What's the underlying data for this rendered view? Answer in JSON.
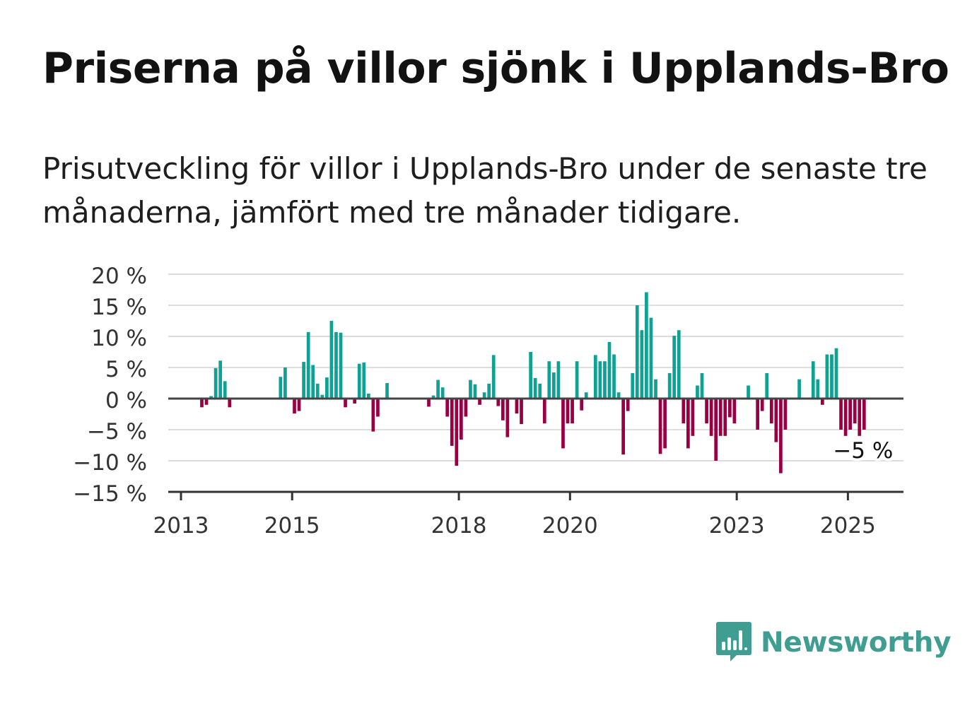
{
  "header": {
    "title": "Priserna på villor sjönk i Upplands-Bro",
    "subtitle": "Prisutveckling för villor i Upplands-Bro under de senaste tre månaderna, jämfört med tre månader tidigare."
  },
  "brand": {
    "name": "Newsworthy",
    "icon": "bar-chart-speech-bubble-icon",
    "color": "#3f9d92"
  },
  "colors": {
    "positive": "#0fa192",
    "negative": "#990044",
    "grid": "#dddddd",
    "zero_line": "#444444",
    "axis": "#333333"
  },
  "chart_data": {
    "type": "bar",
    "title": "Priserna på villor sjönk i Upplands-Bro",
    "subtitle": "Prisutveckling för villor i Upplands-Bro under de senaste tre månaderna, jämfört med tre månader tidigare.",
    "xlabel": "",
    "ylabel": "",
    "x_unit": "month",
    "x_range": [
      "2013-01",
      "2025-12"
    ],
    "x_ticks": [
      "2013",
      "2015",
      "2018",
      "2020",
      "2023",
      "2025"
    ],
    "y_ticks": [
      20,
      15,
      10,
      5,
      0,
      -5,
      -10,
      -15
    ],
    "y_tick_labels": [
      "20 %",
      "15 %",
      "10 %",
      "5 %",
      "0 %",
      "−5 %",
      "−10 %",
      "−15 %"
    ],
    "ylim": [
      -15,
      20
    ],
    "grid": true,
    "legend": "none",
    "series": [
      {
        "values": [
          [
            "2013-05",
            -1.4
          ],
          [
            "2013-06",
            -1.0
          ],
          [
            "2013-07",
            0.4
          ],
          [
            "2013-08",
            4.9
          ],
          [
            "2013-09",
            6.1
          ],
          [
            "2013-10",
            2.8
          ],
          [
            "2013-11",
            -1.4
          ],
          [
            "2014-10",
            3.5
          ],
          [
            "2014-11",
            5.0
          ],
          [
            "2015-01",
            -2.4
          ],
          [
            "2015-02",
            -2.0
          ],
          [
            "2015-03",
            5.9
          ],
          [
            "2015-04",
            10.7
          ],
          [
            "2015-05",
            5.4
          ],
          [
            "2015-06",
            2.4
          ],
          [
            "2015-07",
            0.6
          ],
          [
            "2015-08",
            3.4
          ],
          [
            "2015-09",
            12.5
          ],
          [
            "2015-10",
            10.7
          ],
          [
            "2015-11",
            10.6
          ],
          [
            "2015-12",
            -1.4
          ],
          [
            "2016-02",
            -0.8
          ],
          [
            "2016-03",
            5.6
          ],
          [
            "2016-04",
            5.8
          ],
          [
            "2016-05",
            0.8
          ],
          [
            "2016-06",
            -5.3
          ],
          [
            "2016-07",
            -2.9
          ],
          [
            "2016-09",
            2.5
          ],
          [
            "2017-06",
            -1.3
          ],
          [
            "2017-07",
            0.5
          ],
          [
            "2017-08",
            3.0
          ],
          [
            "2017-09",
            1.8
          ],
          [
            "2017-10",
            -2.9
          ],
          [
            "2017-11",
            -7.6
          ],
          [
            "2017-12",
            -10.8
          ],
          [
            "2018-01",
            -6.6
          ],
          [
            "2018-02",
            -2.9
          ],
          [
            "2018-03",
            3.0
          ],
          [
            "2018-04",
            2.3
          ],
          [
            "2018-05",
            -1.0
          ],
          [
            "2018-06",
            1.0
          ],
          [
            "2018-07",
            2.4
          ],
          [
            "2018-08",
            7.0
          ],
          [
            "2018-09",
            -1.2
          ],
          [
            "2018-10",
            -3.5
          ],
          [
            "2018-11",
            -6.2
          ],
          [
            "2019-01",
            -2.4
          ],
          [
            "2019-02",
            -4.1
          ],
          [
            "2019-04",
            7.5
          ],
          [
            "2019-05",
            3.3
          ],
          [
            "2019-06",
            2.4
          ],
          [
            "2019-07",
            -4.0
          ],
          [
            "2019-08",
            6.0
          ],
          [
            "2019-09",
            4.2
          ],
          [
            "2019-10",
            6.0
          ],
          [
            "2019-11",
            -8.0
          ],
          [
            "2019-12",
            -4.0
          ],
          [
            "2020-01",
            -4.0
          ],
          [
            "2020-02",
            6.0
          ],
          [
            "2020-03",
            -1.9
          ],
          [
            "2020-04",
            1.0
          ],
          [
            "2020-06",
            7.0
          ],
          [
            "2020-07",
            6.0
          ],
          [
            "2020-08",
            6.0
          ],
          [
            "2020-09",
            9.1
          ],
          [
            "2020-10",
            7.1
          ],
          [
            "2020-11",
            1.0
          ],
          [
            "2020-12",
            -9.0
          ],
          [
            "2021-01",
            -2.0
          ],
          [
            "2021-02",
            4.1
          ],
          [
            "2021-03",
            15.0
          ],
          [
            "2021-04",
            11.0
          ],
          [
            "2021-05",
            17.1
          ],
          [
            "2021-06",
            13.0
          ],
          [
            "2021-07",
            3.1
          ],
          [
            "2021-08",
            -8.9
          ],
          [
            "2021-09",
            -8.0
          ],
          [
            "2021-10",
            4.1
          ],
          [
            "2021-11",
            10.1
          ],
          [
            "2021-12",
            11.0
          ],
          [
            "2022-01",
            -4.0
          ],
          [
            "2022-02",
            -8.0
          ],
          [
            "2022-03",
            -6.0
          ],
          [
            "2022-04",
            2.1
          ],
          [
            "2022-05",
            4.1
          ],
          [
            "2022-06",
            -4.0
          ],
          [
            "2022-07",
            -6.0
          ],
          [
            "2022-08",
            -10.0
          ],
          [
            "2022-09",
            -6.0
          ],
          [
            "2022-10",
            -6.0
          ],
          [
            "2022-11",
            -3.0
          ],
          [
            "2022-12",
            -4.0
          ],
          [
            "2023-03",
            2.1
          ],
          [
            "2023-05",
            -5.0
          ],
          [
            "2023-06",
            -2.0
          ],
          [
            "2023-07",
            4.1
          ],
          [
            "2023-08",
            -4.0
          ],
          [
            "2023-09",
            -7.0
          ],
          [
            "2023-10",
            -12.0
          ],
          [
            "2023-11",
            -5.0
          ],
          [
            "2024-02",
            3.1
          ],
          [
            "2024-05",
            6.0
          ],
          [
            "2024-06",
            3.1
          ],
          [
            "2024-07",
            -1.0
          ],
          [
            "2024-08",
            7.1
          ],
          [
            "2024-09",
            7.1
          ],
          [
            "2024-10",
            8.1
          ],
          [
            "2024-11",
            -5.0
          ],
          [
            "2024-12",
            -6.0
          ],
          [
            "2025-01",
            -5.0
          ],
          [
            "2025-02",
            -4.0
          ],
          [
            "2025-03",
            -6.0
          ],
          [
            "2025-04",
            -5.0
          ]
        ]
      }
    ],
    "annotations": [
      {
        "x": "2025-04",
        "y": -5,
        "text": "−5 %"
      }
    ]
  }
}
